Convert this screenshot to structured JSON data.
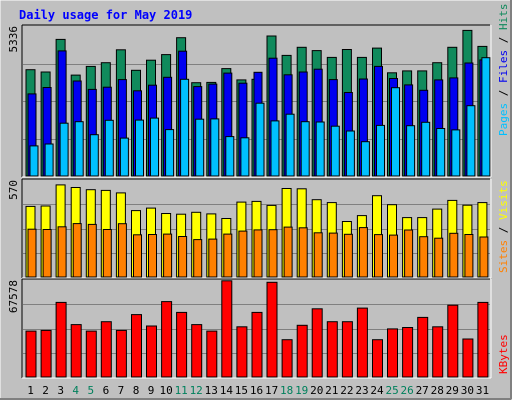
{
  "chart_data": {
    "type": "bar",
    "title": "Daily usage for May 2019",
    "categories": [
      "1",
      "2",
      "3",
      "4",
      "5",
      "6",
      "7",
      "8",
      "9",
      "10",
      "11",
      "12",
      "13",
      "14",
      "15",
      "16",
      "17",
      "18",
      "19",
      "20",
      "21",
      "22",
      "23",
      "24",
      "25",
      "26",
      "27",
      "28",
      "29",
      "30",
      "31"
    ],
    "weekend_days": [
      "4",
      "5",
      "11",
      "12",
      "18",
      "19",
      "25",
      "26"
    ],
    "panels": [
      {
        "id": "hits-files-pages",
        "ymax": 5336,
        "ymax_label": "5336",
        "series": [
          {
            "name": "Hits",
            "color": "#108a5c",
            "values": [
              3780,
              3700,
              4860,
              3590,
              3900,
              4030,
              4490,
              3760,
              4120,
              4320,
              4920,
              3320,
              3330,
              3820,
              3420,
              3440,
              4980,
              4290,
              4580,
              4460,
              4220,
              4500,
              4220,
              4550,
              3670,
              3740,
              3740,
              4030,
              4580,
              5180,
              4610
            ]
          },
          {
            "name": "Files",
            "color": "#0000f0",
            "values": [
              2920,
              3150,
              4450,
              3380,
              3080,
              3160,
              3430,
              3030,
              3230,
              3510,
              4440,
              3180,
              3270,
              3660,
              3300,
              3690,
              4190,
              3600,
              3700,
              3800,
              3430,
              2970,
              3450,
              3900,
              3470,
              3240,
              3050,
              3420,
              3490,
              4020,
              4130
            ]
          },
          {
            "name": "Pages",
            "color": "#00c0ff",
            "values": [
              1070,
              1140,
              1880,
              1930,
              1470,
              1980,
              1350,
              1990,
              2060,
              1650,
              3440,
              2020,
              2030,
              1400,
              1360,
              2590,
              1960,
              2200,
              1930,
              1920,
              1770,
              1600,
              1220,
              1800,
              3140,
              1790,
              1910,
              1690,
              1640,
              2500,
              4210
            ]
          }
        ]
      },
      {
        "id": "visits-sites",
        "ymax": 570,
        "ymax_label": "570",
        "series": [
          {
            "name": "Visits",
            "color": "#ffff00",
            "values": [
              415,
              417,
              541,
              526,
              513,
              509,
              494,
              390,
              405,
              373,
              369,
              380,
              371,
              344,
              440,
              444,
              421,
              520,
              518,
              454,
              437,
              326,
              361,
              478,
              425,
              349,
              349,
              399,
              450,
              422,
              437
            ]
          },
          {
            "name": "Sites",
            "color": "#ff8000",
            "values": [
              281,
              279,
              295,
              314,
              309,
              279,
              313,
              248,
              250,
              252,
              238,
              220,
              223,
              252,
              270,
              277,
              278,
              293,
              289,
              260,
              258,
              251,
              290,
              249,
              246,
              276,
              237,
              228,
              257,
              250,
              235
            ]
          }
        ]
      },
      {
        "id": "kbytes",
        "ymax": 67578,
        "ymax_label": "67578",
        "series": [
          {
            "name": "KBytes",
            "color": "#ff0000",
            "values": [
              32000,
              32500,
              52000,
              36500,
              32000,
              38500,
              32500,
              43500,
              35500,
              52500,
              45000,
              36500,
              32000,
              67000,
              35000,
              45000,
              66000,
              26000,
              36000,
              47500,
              38500,
              38500,
              48000,
              26000,
              33500,
              34500,
              41500,
              35000,
              50000,
              26500,
              52000
            ]
          }
        ]
      }
    ],
    "colors": {
      "background": "#c0c0c0",
      "frame_dark": "#000000",
      "frame_light": "#ffffff",
      "title": "#0000ff",
      "weekday_label": "#000000",
      "weekend_label": "#00805c",
      "label_pages": "#00c0ff",
      "label_files": "#0000f0",
      "label_hits": "#108a5c",
      "label_sites": "#ff8000",
      "label_visits": "#ffff00",
      "label_kbytes": "#ff0000",
      "separator": "#000000"
    },
    "labels": {
      "pages": "Pages",
      "files": "Files",
      "hits": "Hits",
      "sites": "Sites",
      "visits": "Visits",
      "kbytes": "KBytes",
      "separator": " / "
    }
  }
}
